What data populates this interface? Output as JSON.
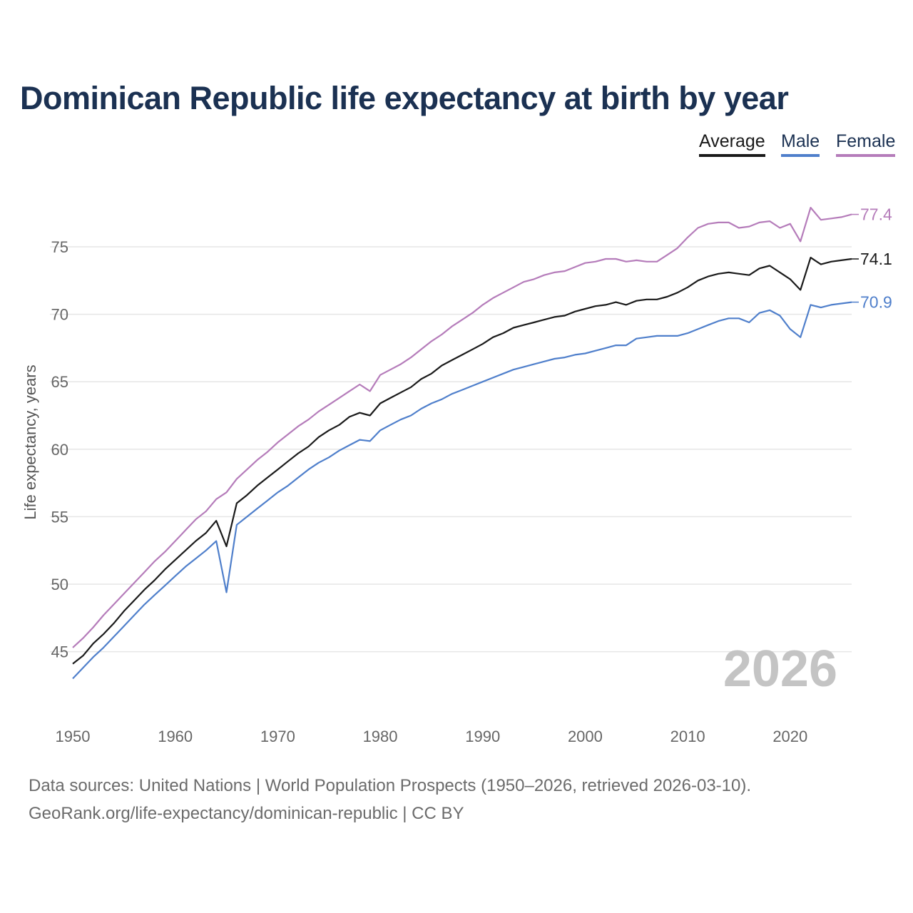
{
  "title": "Dominican Republic life expectancy at birth by year",
  "legend": [
    {
      "name": "Average",
      "color": "#1a1a1a"
    },
    {
      "name": "Male",
      "color": "#4f7fcb"
    },
    {
      "name": "Female",
      "color": "#b57cba"
    }
  ],
  "footer": {
    "line1": "Data sources: United Nations | World Population Prospects (1950–2026, retrieved 2026-03-10).",
    "line2": "GeoRank.org/life-expectancy/dominican-republic | CC BY"
  },
  "chart_data": {
    "type": "line",
    "title": "Dominican Republic life expectancy at birth by year",
    "xlabel": "",
    "ylabel": "Life expectancy, years",
    "xlim": [
      1950,
      2026
    ],
    "ylim": [
      42,
      78
    ],
    "xticks": [
      "1950",
      "1960",
      "1970",
      "1980",
      "1990",
      "2000",
      "2010",
      "2020"
    ],
    "yticks": [
      "45",
      "50",
      "55",
      "60",
      "65",
      "70",
      "75"
    ],
    "grid": true,
    "legend_position": "top-right",
    "watermark_year": "2026",
    "x_start": 1950,
    "series": [
      {
        "name": "Average",
        "end_label": "74.1",
        "values": [
          44.1,
          44.7,
          45.6,
          46.3,
          47.1,
          48.0,
          48.8,
          49.6,
          50.3,
          51.1,
          51.8,
          52.5,
          53.2,
          53.8,
          54.7,
          52.8,
          56.0,
          56.6,
          57.3,
          57.9,
          58.5,
          59.1,
          59.7,
          60.2,
          60.9,
          61.4,
          61.8,
          62.4,
          62.7,
          62.5,
          63.4,
          63.8,
          64.2,
          64.6,
          65.2,
          65.6,
          66.2,
          66.6,
          67.0,
          67.4,
          67.8,
          68.3,
          68.6,
          69.0,
          69.2,
          69.4,
          69.6,
          69.8,
          69.9,
          70.2,
          70.4,
          70.6,
          70.7,
          70.9,
          70.7,
          71.0,
          71.1,
          71.1,
          71.3,
          71.6,
          72.0,
          72.5,
          72.8,
          73.0,
          73.1,
          73.0,
          72.9,
          73.4,
          73.6,
          73.1,
          72.6,
          71.8,
          74.2,
          73.7,
          73.9,
          74.0,
          74.1
        ]
      },
      {
        "name": "Male",
        "end_label": "70.9",
        "values": [
          43.0,
          43.8,
          44.6,
          45.3,
          46.1,
          46.9,
          47.7,
          48.5,
          49.2,
          49.9,
          50.6,
          51.3,
          51.9,
          52.5,
          53.2,
          49.4,
          54.4,
          55.0,
          55.6,
          56.2,
          56.8,
          57.3,
          57.9,
          58.5,
          59.0,
          59.4,
          59.9,
          60.3,
          60.7,
          60.6,
          61.4,
          61.8,
          62.2,
          62.5,
          63.0,
          63.4,
          63.7,
          64.1,
          64.4,
          64.7,
          65.0,
          65.3,
          65.6,
          65.9,
          66.1,
          66.3,
          66.5,
          66.7,
          66.8,
          67.0,
          67.1,
          67.3,
          67.5,
          67.7,
          67.7,
          68.2,
          68.3,
          68.4,
          68.4,
          68.4,
          68.6,
          68.9,
          69.2,
          69.5,
          69.7,
          69.7,
          69.4,
          70.1,
          70.3,
          69.9,
          68.9,
          68.3,
          70.7,
          70.5,
          70.7,
          70.8,
          70.9
        ]
      },
      {
        "name": "Female",
        "end_label": "77.4",
        "values": [
          45.3,
          46.0,
          46.8,
          47.7,
          48.5,
          49.3,
          50.1,
          50.9,
          51.7,
          52.4,
          53.2,
          54.0,
          54.8,
          55.4,
          56.3,
          56.8,
          57.8,
          58.5,
          59.2,
          59.8,
          60.5,
          61.1,
          61.7,
          62.2,
          62.8,
          63.3,
          63.8,
          64.3,
          64.8,
          64.3,
          65.5,
          65.9,
          66.3,
          66.8,
          67.4,
          68.0,
          68.5,
          69.1,
          69.6,
          70.1,
          70.7,
          71.2,
          71.6,
          72.0,
          72.4,
          72.6,
          72.9,
          73.1,
          73.2,
          73.5,
          73.8,
          73.9,
          74.1,
          74.1,
          73.9,
          74.0,
          73.9,
          73.9,
          74.4,
          74.9,
          75.7,
          76.4,
          76.7,
          76.8,
          76.8,
          76.4,
          76.5,
          76.8,
          76.9,
          76.4,
          76.7,
          75.4,
          77.9,
          77.0,
          77.1,
          77.2,
          77.4
        ]
      }
    ]
  }
}
